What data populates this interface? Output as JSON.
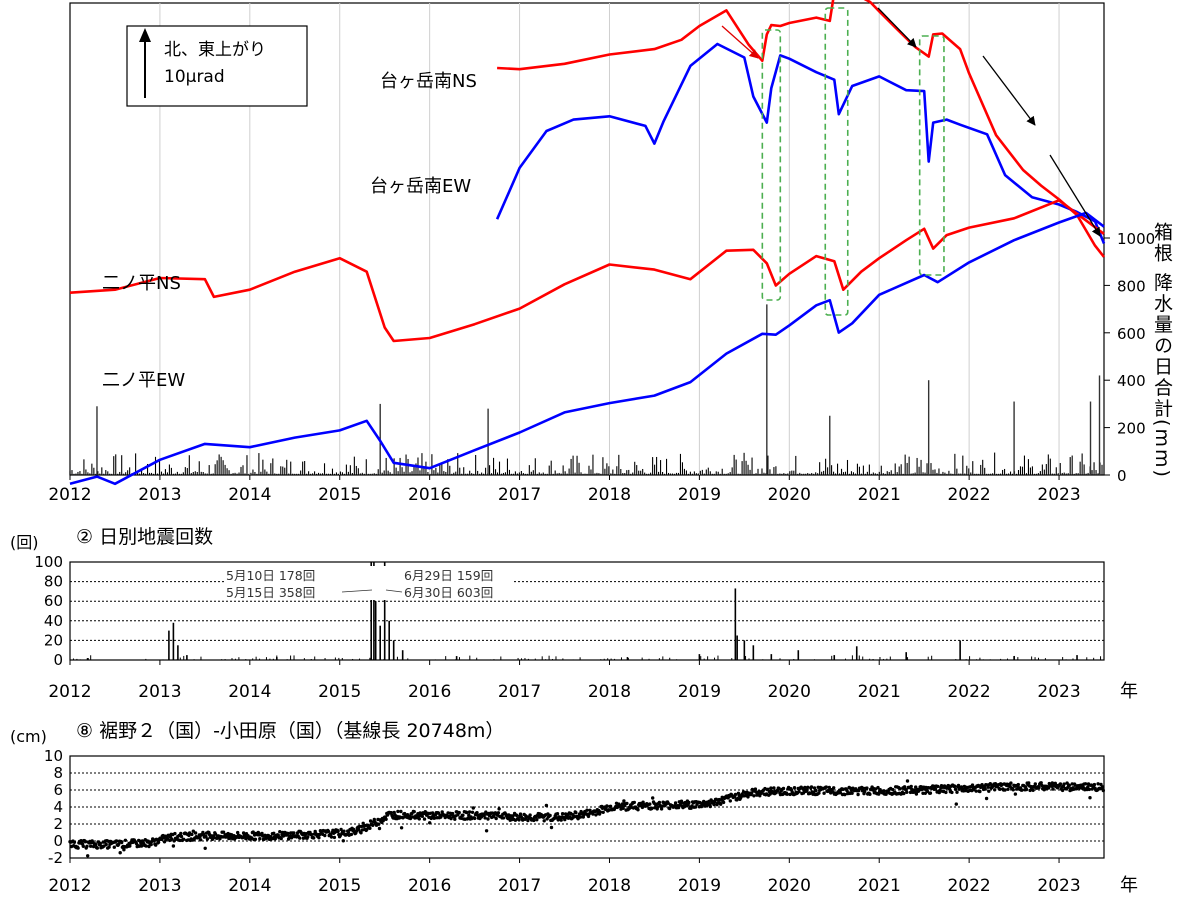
{
  "years": [
    "2012",
    "2013",
    "2014",
    "2015",
    "2016",
    "2017",
    "2018",
    "2019",
    "2020",
    "2021",
    "2022",
    "2023"
  ],
  "nen": "年",
  "chart_data": [
    {
      "type": "line",
      "title": "",
      "legend": {
        "line1": "北、東上がり",
        "line2": "10μrad"
      },
      "xlim": [
        2012,
        2023.5
      ],
      "ylabel_right": "箱根 降水量の日合計(mm)",
      "right_ticks": [
        "0",
        "200",
        "400",
        "600",
        "800",
        "1000"
      ],
      "right_ylim": [
        0,
        1200
      ],
      "series": [
        {
          "name": "台ヶ岳南NS",
          "color": "#ff0000",
          "x": [
            2016.75,
            2017.0,
            2017.5,
            2018.0,
            2018.5,
            2018.8,
            2019.0,
            2019.3,
            2019.55,
            2019.7,
            2019.75,
            2019.8,
            2019.9,
            2020.0,
            2020.3,
            2020.45,
            2020.5,
            2020.6,
            2020.7,
            2020.9,
            2021.0,
            2021.2,
            2021.4,
            2021.55,
            2021.6,
            2021.7,
            2021.9,
            2022.0,
            2022.3,
            2022.6,
            2022.8,
            2023.0,
            2023.2,
            2023.4,
            2023.5
          ],
          "y": [
            -3.6,
            -3.6,
            -3.4,
            -2.9,
            -2.7,
            -2.2,
            -1.6,
            -0.8,
            -2.5,
            -3.2,
            -2.0,
            -1.5,
            -1.6,
            -1.4,
            -1.2,
            -1.3,
            0.0,
            0.1,
            0.0,
            -0.4,
            -0.9,
            -1.7,
            -2.6,
            -3.0,
            -2.0,
            -1.9,
            -2.7,
            -3.8,
            -6.8,
            -8.4,
            -9.2,
            -9.8,
            -10.6,
            -12.0,
            -12.6
          ]
        },
        {
          "name": "台ヶ岳南EW",
          "color": "#0000ff",
          "x": [
            2016.75,
            2017.0,
            2017.3,
            2017.6,
            2018.0,
            2018.4,
            2018.5,
            2018.6,
            2018.9,
            2019.2,
            2019.5,
            2019.6,
            2019.75,
            2019.8,
            2019.9,
            2020.0,
            2020.3,
            2020.5,
            2020.55,
            2020.7,
            2021.0,
            2021.3,
            2021.5,
            2021.55,
            2021.6,
            2021.75,
            2021.9,
            2022.2,
            2022.4,
            2022.7,
            2023.0,
            2023.2,
            2023.4,
            2023.5
          ],
          "y": [
            -10.8,
            -8.3,
            -6.6,
            -6.0,
            -5.9,
            -6.3,
            -7.2,
            -6.1,
            -3.5,
            -2.4,
            -3.1,
            -4.9,
            -6.2,
            -4.5,
            -3.0,
            -3.1,
            -3.8,
            -4.1,
            -5.8,
            -4.4,
            -4.0,
            -4.6,
            -4.7,
            -8.0,
            -6.2,
            -6.0,
            -6.3,
            -6.7,
            -8.7,
            -9.7,
            -10.1,
            -10.4,
            -10.9,
            -11.9
          ]
        },
        {
          "name": "二ノ平NS",
          "color": "#ff0000",
          "x": [
            2012.0,
            2012.5,
            2013.0,
            2013.5,
            2013.6,
            2014.0,
            2014.5,
            2015.0,
            2015.3,
            2015.5,
            2015.6,
            2016.0,
            2016.5,
            2017.0,
            2017.5,
            2018.0,
            2018.5,
            2018.9,
            2019.3,
            2019.6,
            2019.75,
            2019.85,
            2020.0,
            2020.3,
            2020.5,
            2020.6,
            2020.8,
            2021.0,
            2021.3,
            2021.5,
            2021.6,
            2021.75,
            2022.0,
            2022.5,
            2023.0,
            2023.3,
            2023.5
          ],
          "y": [
            -14.3,
            -14.1,
            -13.6,
            -13.6,
            -14.5,
            -14.1,
            -13.3,
            -12.6,
            -13.3,
            -15.9,
            -16.6,
            -16.4,
            -15.8,
            -15.0,
            -13.9,
            -12.9,
            -13.2,
            -13.6,
            -12.3,
            -12.2,
            -12.9,
            -13.9,
            -13.4,
            -12.5,
            -12.8,
            -14.1,
            -13.3,
            -12.6,
            -11.8,
            -11.2,
            -12.2,
            -11.5,
            -11.2,
            -10.7,
            -9.9,
            -10.8,
            -11.5
          ]
        },
        {
          "name": "二ノ平EW",
          "color": "#0000ff",
          "x": [
            2012.0,
            2012.3,
            2012.5,
            2013.0,
            2013.5,
            2014.0,
            2014.5,
            2015.0,
            2015.3,
            2015.45,
            2015.6,
            2016.0,
            2016.5,
            2017.0,
            2017.5,
            2018.0,
            2018.5,
            2018.9,
            2019.3,
            2019.7,
            2019.85,
            2020.0,
            2020.3,
            2020.45,
            2020.55,
            2020.7,
            2021.0,
            2021.5,
            2021.65,
            2022.0,
            2022.5,
            2023.0,
            2023.3,
            2023.5
          ],
          "y": [
            -23.4,
            -23.0,
            -23.4,
            -22.2,
            -21.5,
            -21.6,
            -21.2,
            -20.8,
            -20.4,
            -21.3,
            -22.4,
            -22.6,
            -21.8,
            -20.9,
            -20.0,
            -19.5,
            -19.2,
            -18.5,
            -17.2,
            -16.2,
            -16.3,
            -15.8,
            -14.9,
            -14.6,
            -16.2,
            -15.7,
            -14.4,
            -13.4,
            -13.8,
            -12.8,
            -11.8,
            -10.9,
            -10.5,
            -11.1
          ]
        }
      ],
      "precip": {
        "x": [
          2012.3,
          2015.45,
          2016.65,
          2019.75,
          2020.45,
          2021.55,
          2022.5,
          2023.35,
          2023.45
        ],
        "y": [
          290,
          300,
          280,
          720,
          250,
          400,
          310,
          310,
          420
        ]
      },
      "curve_labels": {
        "tgN": "台ヶ岳南NS",
        "tgE": "台ヶ岳南EW",
        "niN": "二ノ平NS",
        "niE": "二ノ平EW"
      },
      "highlight_periods": [
        [
          2019.7,
          2019.9
        ],
        [
          2020.4,
          2020.65
        ],
        [
          2021.45,
          2021.72
        ]
      ]
    },
    {
      "type": "bar",
      "title": "② 日別地震回数",
      "unit": "(回)",
      "ylim": [
        0,
        100
      ],
      "y_ticks": [
        "0",
        "20",
        "40",
        "60",
        "80",
        "100"
      ],
      "grid": true,
      "annotations": [
        "5月10日 178回",
        "5月15日 358回",
        "6月29日 159回",
        "6月30日 603回"
      ],
      "x": [
        2012.2,
        2013.1,
        2013.15,
        2013.2,
        2013.3,
        2014.3,
        2015.35,
        2015.38,
        2015.4,
        2015.45,
        2015.5,
        2015.55,
        2015.6,
        2015.7,
        2016.3,
        2018.2,
        2019.0,
        2019.4,
        2019.42,
        2019.5,
        2019.6,
        2019.8,
        2020.1,
        2020.5,
        2020.75,
        2021.3,
        2021.9,
        2022.5,
        2023.2
      ],
      "values": [
        2,
        30,
        38,
        15,
        5,
        3,
        100,
        100,
        60,
        35,
        100,
        40,
        20,
        10,
        4,
        3,
        6,
        73,
        25,
        20,
        15,
        6,
        10,
        5,
        14,
        8,
        20,
        4,
        5
      ]
    },
    {
      "type": "scatter",
      "title": "⑧ 裾野２（国）-小田原（国）（基線長 20748m）",
      "unit": "(cm)",
      "ylim": [
        -2,
        10
      ],
      "y_ticks": [
        "-2",
        "0",
        "2",
        "4",
        "6",
        "8",
        "10"
      ],
      "grid": true,
      "trend": {
        "x": [
          2012.0,
          2012.5,
          2012.9,
          2013.1,
          2013.5,
          2014.0,
          2014.5,
          2015.0,
          2015.2,
          2015.4,
          2015.55,
          2016.0,
          2016.5,
          2017.0,
          2017.5,
          2017.8,
          2018.0,
          2018.5,
          2019.0,
          2019.2,
          2019.5,
          2019.7,
          2020.0,
          2020.5,
          2021.0,
          2021.5,
          2022.0,
          2022.5,
          2023.0,
          2023.5
        ],
        "y": [
          -0.4,
          -0.4,
          -0.2,
          0.4,
          0.6,
          0.6,
          0.7,
          0.9,
          1.2,
          2.2,
          3.1,
          3.0,
          3.0,
          2.8,
          2.8,
          3.3,
          4.0,
          4.2,
          4.3,
          4.6,
          5.5,
          5.8,
          5.9,
          5.9,
          5.9,
          6.0,
          6.2,
          6.4,
          6.4,
          6.3
        ]
      }
    }
  ]
}
